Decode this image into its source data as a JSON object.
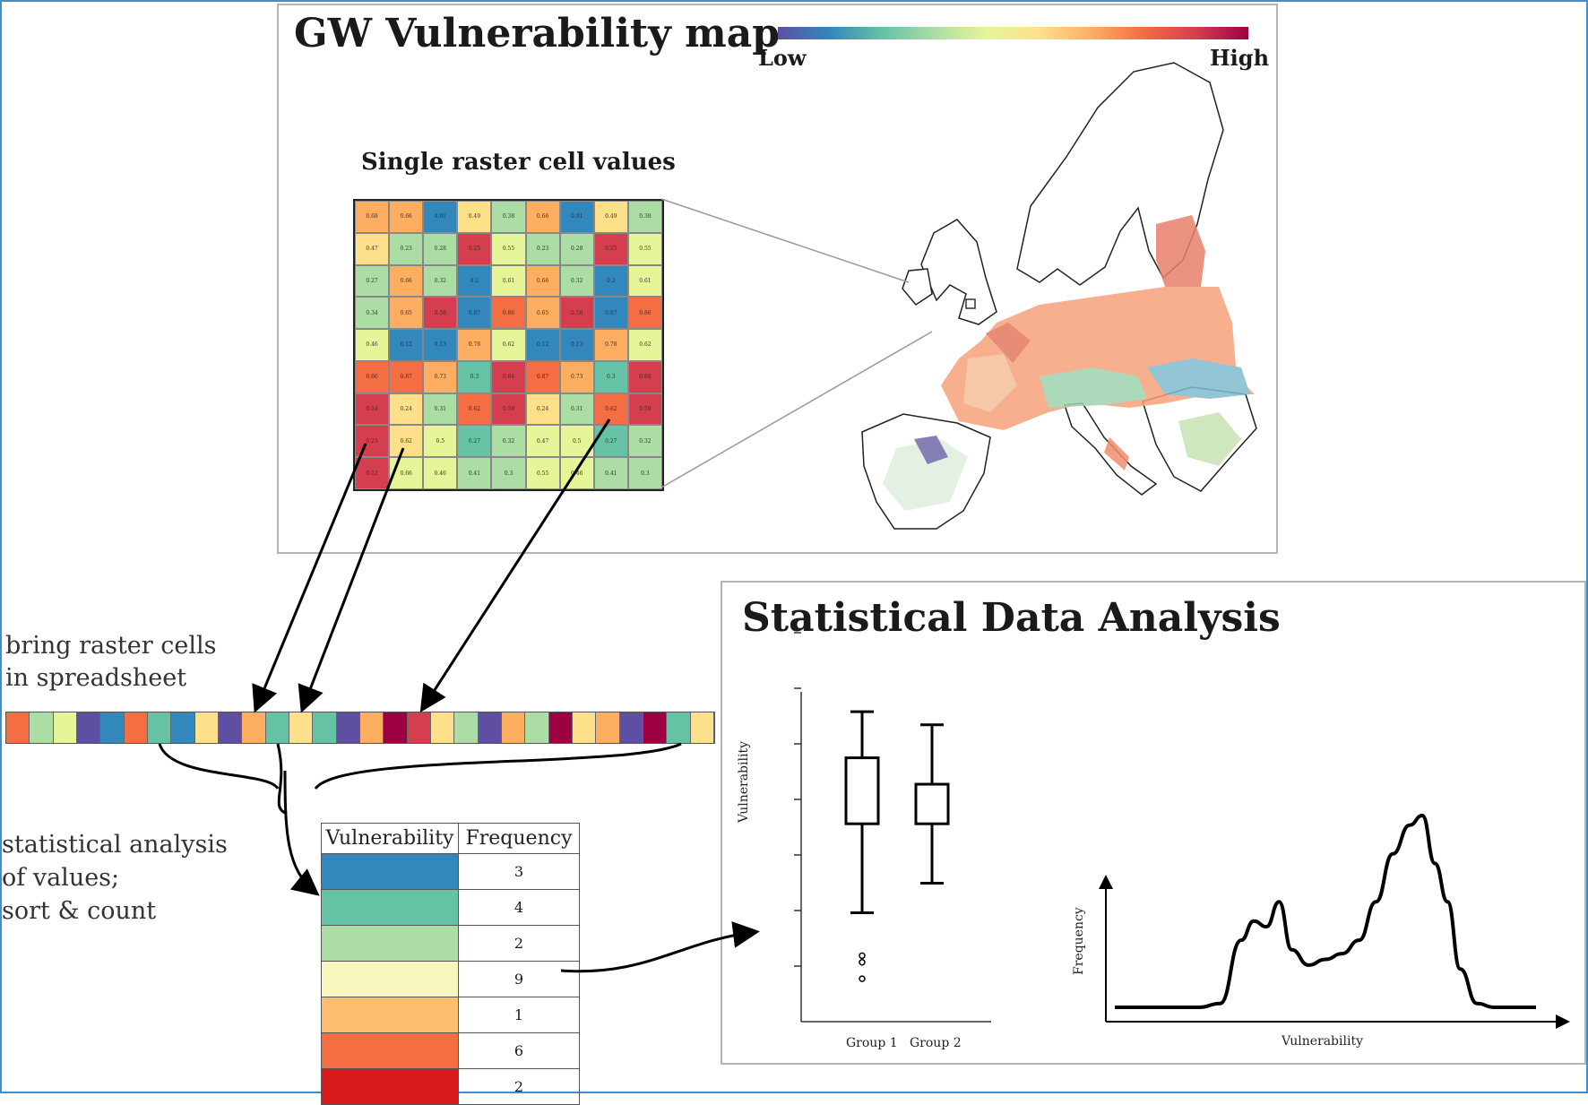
{
  "map_panel": {
    "title": "GW Vulnerability map",
    "legend_low": "Low",
    "legend_high": "High",
    "grid_title": "Single raster cell values",
    "colors": [
      "#5e4fa2",
      "#3288bd",
      "#66c2a5",
      "#abdda4",
      "#e6f598",
      "#fee08b",
      "#fdae61",
      "#f46d43",
      "#d53e4f",
      "#9e0142"
    ],
    "grid": [
      [
        "0.68",
        "0.66",
        "0.91",
        "0.49",
        "0.38",
        "0.66",
        "0.91",
        "0.49",
        "0.38"
      ],
      [
        "0.47",
        "0.23",
        "0.28",
        "0.25",
        "0.55",
        "0.23",
        "0.28",
        "0.25",
        "0.55"
      ],
      [
        "0.27",
        "0.66",
        "0.32",
        "0.2",
        "0.61",
        "0.66",
        "0.32",
        "0.2",
        "0.61"
      ],
      [
        "0.34",
        "0.65",
        "0.58",
        "0.87",
        "0.86",
        "0.65",
        "0.58",
        "0.87",
        "0.86"
      ],
      [
        "0.46",
        "0.12",
        "0.13",
        "0.78",
        "0.62",
        "0.12",
        "0.13",
        "0.78",
        "0.62"
      ],
      [
        "0.66",
        "0.87",
        "0.73",
        "0.3",
        "0.64",
        "0.87",
        "0.73",
        "0.3",
        "0.64"
      ],
      [
        "0.54",
        "0.24",
        "0.31",
        "0.62",
        "0.59",
        "0.24",
        "0.31",
        "0.62",
        "0.59"
      ],
      [
        "0.23",
        "0.62",
        "0.5",
        "0.27",
        "0.32",
        "0.47",
        "0.5",
        "0.27",
        "0.32"
      ],
      [
        "0.52",
        "0.66",
        "0.46",
        "0.41",
        "0.3",
        "0.55",
        "0.46",
        "0.41",
        "0.3"
      ]
    ],
    "grid_colors": [
      [
        "#fdae61",
        "#fdae61",
        "#3288bd",
        "#fee08b",
        "#abdda4",
        "#fdae61",
        "#3288bd",
        "#fee08b",
        "#abdda4"
      ],
      [
        "#fee08b",
        "#abdda4",
        "#abdda4",
        "#d53e4f",
        "#e6f598",
        "#abdda4",
        "#abdda4",
        "#d53e4f",
        "#e6f598"
      ],
      [
        "#abdda4",
        "#fdae61",
        "#abdda4",
        "#3288bd",
        "#e6f598",
        "#fdae61",
        "#abdda4",
        "#3288bd",
        "#e6f598"
      ],
      [
        "#abdda4",
        "#fdae61",
        "#d53e4f",
        "#3288bd",
        "#f46d43",
        "#fdae61",
        "#d53e4f",
        "#3288bd",
        "#f46d43"
      ],
      [
        "#e6f598",
        "#3288bd",
        "#3288bd",
        "#fdae61",
        "#e6f598",
        "#3288bd",
        "#3288bd",
        "#fdae61",
        "#e6f598"
      ],
      [
        "#f46d43",
        "#f46d43",
        "#fdae61",
        "#66c2a5",
        "#d53e4f",
        "#f46d43",
        "#fdae61",
        "#66c2a5",
        "#d53e4f"
      ],
      [
        "#d53e4f",
        "#fee08b",
        "#abdda4",
        "#f46d43",
        "#d53e4f",
        "#fee08b",
        "#abdda4",
        "#f46d43",
        "#d53e4f"
      ],
      [
        "#d53e4f",
        "#fee08b",
        "#e6f598",
        "#66c2a5",
        "#abdda4",
        "#e6f598",
        "#e6f598",
        "#66c2a5",
        "#abdda4"
      ],
      [
        "#d53e4f",
        "#e6f598",
        "#e6f598",
        "#abdda4",
        "#abdda4",
        "#e6f598",
        "#e6f598",
        "#abdda4",
        "#abdda4"
      ]
    ]
  },
  "spreadsheet": {
    "label_line1": "bring raster cells",
    "label_line2": "in spreadsheet",
    "strip_colors": [
      "#f46d43",
      "#abdda4",
      "#e6f598",
      "#5e4fa2",
      "#3288bd",
      "#f46d43",
      "#66c2a5",
      "#3288bd",
      "#fee08b",
      "#5e4fa2",
      "#fdae61",
      "#66c2a5",
      "#fee08b",
      "#66c2a5",
      "#5e4fa2",
      "#fdae61",
      "#9e0142",
      "#d53e4f",
      "#fee08b",
      "#abdda4",
      "#5e4fa2",
      "#fdae61",
      "#abdda4",
      "#9e0142",
      "#fee08b",
      "#fdae61",
      "#5e4fa2",
      "#9e0142",
      "#66c2a5",
      "#fee08b"
    ]
  },
  "analysis": {
    "label_line1": "statistical analysis",
    "label_line2": "of values;",
    "label_line3": "sort & count",
    "table_header_vulnerability": "Vulnerability",
    "table_header_frequency": "Frequency",
    "rows": [
      {
        "color": "#3288bd",
        "frequency": "3"
      },
      {
        "color": "#66c2a5",
        "frequency": "4"
      },
      {
        "color": "#abdda4",
        "frequency": "2"
      },
      {
        "color": "#f7f7bd",
        "frequency": "9"
      },
      {
        "color": "#fdbf6f",
        "frequency": "1"
      },
      {
        "color": "#f46d43",
        "frequency": "6"
      },
      {
        "color": "#d7191c",
        "frequency": "2"
      }
    ]
  },
  "stats_panel": {
    "title": "Statistical Data Analysis"
  },
  "chart_data": [
    {
      "type": "box",
      "ylabel": "Vulnerability",
      "categories": [
        "Group 1",
        "Group 2"
      ],
      "boxes": [
        {
          "name": "Group 1",
          "whisker_low": 0.33,
          "q1": 0.6,
          "q3": 0.8,
          "whisker_high": 0.94,
          "outliers": [
            0.2,
            0.18,
            0.13
          ]
        },
        {
          "name": "Group 2",
          "whisker_low": 0.42,
          "q1": 0.6,
          "q3": 0.72,
          "whisker_high": 0.9,
          "outliers": []
        }
      ],
      "ylim": [
        0,
        1
      ]
    },
    {
      "type": "line",
      "xlabel": "Vulnerability",
      "ylabel": "Frequency",
      "x": [
        0,
        0.2,
        0.25,
        0.3,
        0.33,
        0.36,
        0.39,
        0.42,
        0.46,
        0.5,
        0.54,
        0.58,
        0.62,
        0.66,
        0.7,
        0.73,
        0.76,
        0.79,
        0.82,
        0.86,
        0.9,
        0.94,
        1.0
      ],
      "y": [
        0,
        0,
        0.02,
        0.35,
        0.45,
        0.42,
        0.55,
        0.3,
        0.22,
        0.25,
        0.28,
        0.35,
        0.55,
        0.8,
        0.95,
        1.0,
        0.75,
        0.55,
        0.2,
        0.02,
        0,
        0,
        0
      ],
      "xlim": [
        0,
        1
      ],
      "ylim": [
        0,
        1.2
      ]
    }
  ]
}
